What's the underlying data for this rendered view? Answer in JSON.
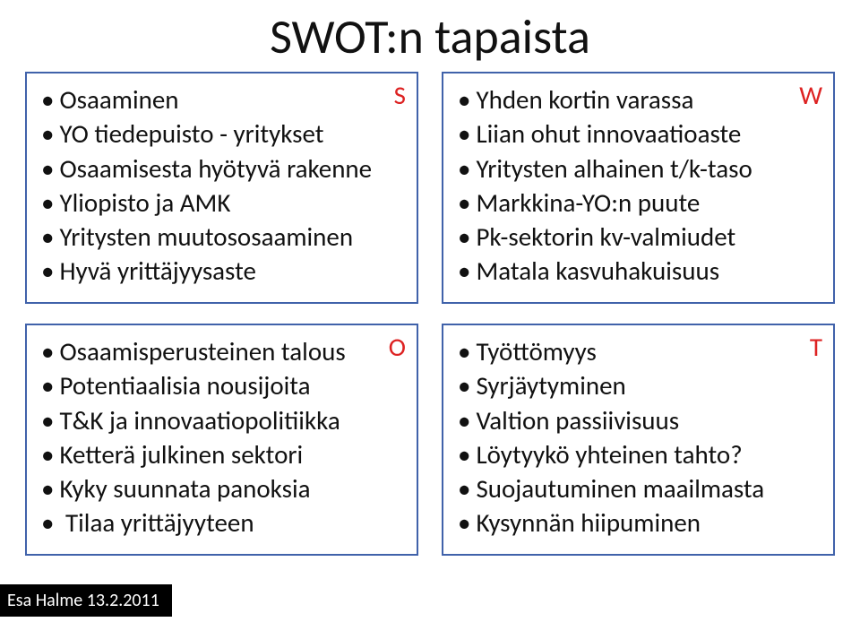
{
  "title": "SWOT:n tapaista",
  "footer": "Esa Halme 13.2.2011",
  "quadrants": {
    "s": {
      "letter": "S",
      "letter_color": "#d22",
      "items": [
        "Osaaminen",
        "YO tiedepuisto - yritykset",
        "Osaamisesta hyötyvä rakenne",
        "Yliopisto ja AMK",
        "Yritysten muutososaaminen",
        "Hyvä yrittäjyysaste"
      ]
    },
    "w": {
      "letter": "W",
      "letter_color": "#d22",
      "items": [
        "Yhden kortin varassa",
        "Liian ohut innovaatioaste",
        "Yritysten alhainen t/k-taso",
        "Markkina-YO:n puute",
        "Pk-sektorin kv-valmiudet",
        "Matala kasvuhakuisuus"
      ]
    },
    "o": {
      "letter": "O",
      "letter_color": "#d22",
      "items": [
        "Osaamisperusteinen talous",
        "Potentiaalisia nousijoita",
        "T&K ja innovaatiopolitiikka",
        "Ketterä julkinen sektori",
        "Kyky suunnata panoksia",
        " Tilaa yrittäjyyteen"
      ]
    },
    "t": {
      "letter": "T",
      "letter_color": "#d22",
      "items": [
        "Työttömyys",
        "Syrjäytyminen",
        "Valtion passiivisuus",
        "Löytyykö yhteinen tahto?",
        "Suojautuminen maailmasta",
        "Kysynnän hiipuminen"
      ]
    }
  },
  "style": {
    "border_color": "#4062aa",
    "title_fontsize": 54,
    "item_fontsize": 29,
    "footer_bg": "#000000",
    "footer_fg": "#ffffff"
  }
}
